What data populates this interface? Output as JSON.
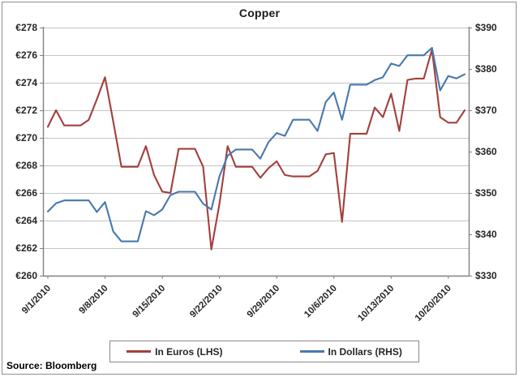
{
  "source_label": "Source:  Bloomberg",
  "chart_data": {
    "type": "line",
    "title": "Copper",
    "grid": true,
    "legend_position": "bottom",
    "x": [
      "9/1/2010",
      "9/2/2010",
      "9/3/2010",
      "9/4/2010",
      "9/5/2010",
      "9/6/2010",
      "9/7/2010",
      "9/8/2010",
      "9/9/2010",
      "9/10/2010",
      "9/11/2010",
      "9/12/2010",
      "9/13/2010",
      "9/14/2010",
      "9/15/2010",
      "9/16/2010",
      "9/17/2010",
      "9/18/2010",
      "9/19/2010",
      "9/20/2010",
      "9/21/2010",
      "9/22/2010",
      "9/23/2010",
      "9/24/2010",
      "9/25/2010",
      "9/26/2010",
      "9/27/2010",
      "9/28/2010",
      "9/29/2010",
      "9/30/2010",
      "10/1/2010",
      "10/2/2010",
      "10/3/2010",
      "10/4/2010",
      "10/5/2010",
      "10/6/2010",
      "10/7/2010",
      "10/8/2010",
      "10/9/2010",
      "10/10/2010",
      "10/11/2010",
      "10/12/2010",
      "10/13/2010",
      "10/14/2010",
      "10/15/2010",
      "10/16/2010",
      "10/17/2010",
      "10/18/2010",
      "10/19/2010",
      "10/20/2010",
      "10/21/2010",
      "10/22/2010"
    ],
    "x_tick_indices": [
      0,
      7,
      14,
      21,
      28,
      35,
      42,
      49
    ],
    "x_tick_labels": [
      "9/1/2010",
      "9/8/2010",
      "9/15/2010",
      "9/22/2010",
      "9/29/2010",
      "10/6/2010",
      "10/13/2010",
      "10/20/2010"
    ],
    "left_axis": {
      "min": 260,
      "max": 278,
      "step": 2,
      "prefix": "€",
      "tick_labels": [
        "€260",
        "€262",
        "€264",
        "€266",
        "€268",
        "€270",
        "€272",
        "€274",
        "€276",
        "€278"
      ]
    },
    "right_axis": {
      "min": 330,
      "max": 390,
      "step": 10,
      "prefix": "$",
      "tick_labels": [
        "$330",
        "$340",
        "$350",
        "$360",
        "$370",
        "$380",
        "$390"
      ]
    },
    "series": [
      {
        "name": "In Euros (LHS)",
        "axis": "left",
        "color": "#a33f3b",
        "values": [
          270.8,
          272.0,
          270.9,
          270.9,
          270.9,
          271.3,
          272.8,
          274.4,
          271.2,
          267.9,
          267.9,
          267.9,
          269.4,
          267.3,
          266.1,
          266.0,
          269.2,
          269.2,
          269.2,
          267.9,
          261.9,
          265.2,
          269.4,
          267.9,
          267.9,
          267.9,
          267.1,
          267.8,
          268.3,
          267.3,
          267.2,
          267.2,
          267.2,
          267.6,
          268.8,
          268.9,
          263.9,
          270.3,
          270.3,
          270.3,
          272.2,
          271.5,
          273.2,
          270.5,
          274.2,
          274.3,
          274.3,
          276.4,
          271.5,
          271.1,
          271.1,
          272.0
        ]
      },
      {
        "name": "In Dollars (RHS)",
        "axis": "right",
        "color": "#4878af",
        "values": [
          345.5,
          347.5,
          348.2,
          348.2,
          348.2,
          348.2,
          345.4,
          347.8,
          340.7,
          338.3,
          338.3,
          338.3,
          345.6,
          344.6,
          346.0,
          349.5,
          350.3,
          350.3,
          350.3,
          347.4,
          346.0,
          354.0,
          359.0,
          360.5,
          360.5,
          360.5,
          358.3,
          362.3,
          364.5,
          363.8,
          367.7,
          367.7,
          367.7,
          365.0,
          372.0,
          374.3,
          367.7,
          376.2,
          376.2,
          376.2,
          377.3,
          378.0,
          381.3,
          380.7,
          383.3,
          383.3,
          383.3,
          385.1,
          374.8,
          378.3,
          377.7,
          378.7
        ]
      }
    ],
    "colors": {
      "gridline": "#c4c4c4",
      "axis": "#808080",
      "label": "#262626",
      "title": "#1a1a1a"
    }
  }
}
